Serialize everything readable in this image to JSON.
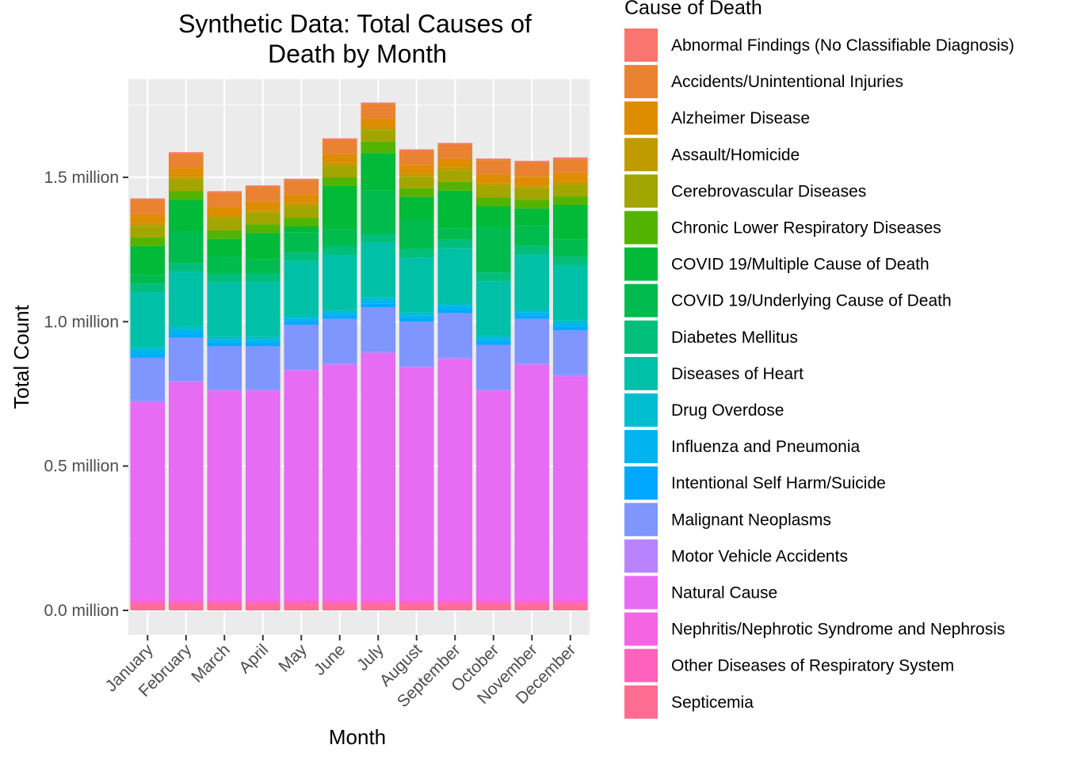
{
  "chart_data": {
    "type": "bar",
    "stacked": true,
    "title": "Synthetic Data: Total Causes of Death by Month",
    "title_lines": [
      "Synthetic Data: Total Causes of",
      "Death by Month"
    ],
    "xlabel": "Month",
    "ylabel": "Total Count",
    "ylim": [
      0,
      1.85
    ],
    "y_unit": "million",
    "yticks": [
      0.0,
      0.5,
      1.0,
      1.5
    ],
    "ytick_labels": [
      "0.0 million",
      "0.5 million",
      "1.0 million",
      "1.5 million"
    ],
    "grid": true,
    "legend_title": "Cause of Death",
    "legend_position": "right",
    "categories": [
      "January",
      "February",
      "March",
      "April",
      "May",
      "June",
      "July",
      "August",
      "September",
      "October",
      "November",
      "December"
    ],
    "series": [
      {
        "name": "Septicemia",
        "color": "#FF6C91",
        "values": [
          0.02,
          0.02,
          0.02,
          0.02,
          0.02,
          0.02,
          0.02,
          0.02,
          0.02,
          0.02,
          0.02,
          0.02
        ]
      },
      {
        "name": "Other Diseases of Respiratory System",
        "color": "#FF62BC",
        "values": [
          0.01,
          0.01,
          0.01,
          0.01,
          0.01,
          0.01,
          0.01,
          0.01,
          0.01,
          0.01,
          0.01,
          0.01
        ]
      },
      {
        "name": "Nephritis/Nephrotic Syndrome and Nephrosis",
        "color": "#F564E3",
        "values": [
          0.01,
          0.01,
          0.01,
          0.01,
          0.01,
          0.01,
          0.01,
          0.01,
          0.01,
          0.01,
          0.01,
          0.01
        ]
      },
      {
        "name": "Natural Cause",
        "color": "#E76BF3",
        "values": [
          0.68,
          0.75,
          0.72,
          0.72,
          0.79,
          0.81,
          0.85,
          0.8,
          0.83,
          0.72,
          0.81,
          0.77
        ]
      },
      {
        "name": "Motor Vehicle Accidents",
        "color": "#B983FF",
        "values": [
          0.005,
          0.005,
          0.005,
          0.005,
          0.005,
          0.005,
          0.005,
          0.005,
          0.005,
          0.005,
          0.005,
          0.005
        ]
      },
      {
        "name": "Malignant Neoplasms",
        "color": "#7F96FF",
        "values": [
          0.15,
          0.15,
          0.15,
          0.15,
          0.155,
          0.155,
          0.155,
          0.155,
          0.155,
          0.155,
          0.155,
          0.155
        ]
      },
      {
        "name": "Intentional Self Harm/Suicide",
        "color": "#00A9FF",
        "values": [
          0.012,
          0.012,
          0.012,
          0.012,
          0.012,
          0.012,
          0.012,
          0.012,
          0.012,
          0.012,
          0.012,
          0.012
        ]
      },
      {
        "name": "Influenza and Pneumonia",
        "color": "#00B4F0",
        "values": [
          0.015,
          0.015,
          0.01,
          0.01,
          0.008,
          0.008,
          0.012,
          0.01,
          0.012,
          0.008,
          0.01,
          0.012
        ]
      },
      {
        "name": "Drug Overdose",
        "color": "#00BDD0",
        "values": [
          0.01,
          0.01,
          0.01,
          0.01,
          0.01,
          0.01,
          0.01,
          0.01,
          0.01,
          0.01,
          0.01,
          0.01
        ]
      },
      {
        "name": "Diseases of Heart",
        "color": "#00C1A7",
        "values": [
          0.19,
          0.19,
          0.19,
          0.19,
          0.19,
          0.19,
          0.19,
          0.19,
          0.19,
          0.19,
          0.19,
          0.19
        ]
      },
      {
        "name": "Diabetes Mellitus",
        "color": "#00BF7D",
        "values": [
          0.03,
          0.03,
          0.03,
          0.03,
          0.03,
          0.03,
          0.03,
          0.03,
          0.03,
          0.03,
          0.03,
          0.03
        ]
      },
      {
        "name": "COVID 19/Underlying Cause of Death",
        "color": "#00BB4E",
        "values": [
          0.03,
          0.11,
          0.06,
          0.05,
          0.07,
          0.06,
          0.15,
          0.1,
          0.04,
          0.16,
          0.07,
          0.06
        ]
      },
      {
        "name": "COVID 19/Multiple Cause of Death",
        "color": "#00BA38",
        "values": [
          0.1,
          0.11,
          0.06,
          0.09,
          0.02,
          0.15,
          0.13,
          0.08,
          0.13,
          0.07,
          0.06,
          0.12
        ]
      },
      {
        "name": "Chronic Lower Respiratory Diseases",
        "color": "#53B400",
        "values": [
          0.03,
          0.03,
          0.03,
          0.03,
          0.03,
          0.03,
          0.04,
          0.03,
          0.03,
          0.03,
          0.03,
          0.03
        ]
      },
      {
        "name": "Cerebrovascular Diseases",
        "color": "#A3A500",
        "values": [
          0.04,
          0.04,
          0.04,
          0.04,
          0.04,
          0.04,
          0.04,
          0.04,
          0.04,
          0.04,
          0.04,
          0.04
        ]
      },
      {
        "name": "Assault/Homicide",
        "color": "#C09B00",
        "values": [
          0.01,
          0.01,
          0.01,
          0.01,
          0.01,
          0.01,
          0.01,
          0.01,
          0.01,
          0.01,
          0.01,
          0.01
        ]
      },
      {
        "name": "Alzheimer Disease",
        "color": "#DE8C00",
        "values": [
          0.03,
          0.03,
          0.03,
          0.03,
          0.03,
          0.03,
          0.03,
          0.03,
          0.03,
          0.03,
          0.03,
          0.03
        ]
      },
      {
        "name": "Accidents/Unintentional Injuries",
        "color": "#EA8331",
        "values": [
          0.05,
          0.05,
          0.05,
          0.05,
          0.05,
          0.05,
          0.05,
          0.05,
          0.05,
          0.05,
          0.05,
          0.05
        ]
      },
      {
        "name": "Abnormal Findings (No Classifiable Diagnosis)",
        "color": "#F8766D",
        "values": [
          0.005,
          0.005,
          0.005,
          0.005,
          0.005,
          0.005,
          0.005,
          0.005,
          0.005,
          0.005,
          0.005,
          0.005
        ]
      }
    ],
    "legend_order": [
      "Abnormal Findings (No Classifiable Diagnosis)",
      "Accidents/Unintentional Injuries",
      "Alzheimer Disease",
      "Assault/Homicide",
      "Cerebrovascular Diseases",
      "Chronic Lower Respiratory Diseases",
      "COVID 19/Multiple Cause of Death",
      "COVID 19/Underlying Cause of Death",
      "Diabetes Mellitus",
      "Diseases of Heart",
      "Drug Overdose",
      "Influenza and Pneumonia",
      "Intentional Self Harm/Suicide",
      "Malignant Neoplasms",
      "Motor Vehicle Accidents",
      "Natural Cause",
      "Nephritis/Nephrotic Syndrome and Nephrosis",
      "Other Diseases of Respiratory System",
      "Septicemia"
    ]
  }
}
